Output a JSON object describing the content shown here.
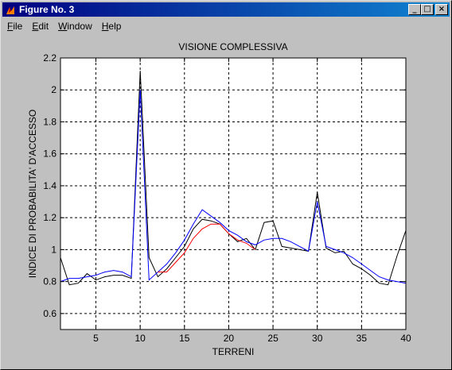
{
  "window": {
    "title": "Figure No. 3",
    "controls": {
      "minimize": "_",
      "maximize": "□",
      "close": "×"
    }
  },
  "menu": {
    "items": [
      {
        "key": "F",
        "rest": "ile"
      },
      {
        "key": "E",
        "rest": "dit"
      },
      {
        "key": "W",
        "rest": "indow"
      },
      {
        "key": "H",
        "rest": "elp"
      }
    ]
  },
  "chart_data": {
    "type": "line",
    "title": "VISIONE COMPLESSIVA",
    "xlabel": "TERRENI",
    "ylabel": "INDICE DI PROBABILITA' D'ACCESSO",
    "xlim": [
      1,
      40
    ],
    "ylim": [
      0.5,
      2.2
    ],
    "xticks": [
      5,
      10,
      15,
      20,
      25,
      30,
      35,
      40
    ],
    "yticks": [
      0.6,
      0.8,
      1,
      1.2,
      1.4,
      1.6,
      1.8,
      2,
      2.2
    ],
    "grid": true,
    "colors": {
      "black": "#000000",
      "blue": "#0000ff",
      "red": "#ff0000",
      "axes_bg": "#ffffff",
      "figure_bg": "#c0c0c0"
    },
    "series": [
      {
        "color": "#000000",
        "x": [
          1,
          2,
          3,
          4,
          5,
          6,
          7,
          8,
          9,
          10,
          11,
          12,
          13,
          14,
          15,
          16,
          17,
          18,
          19,
          20,
          21,
          22,
          23,
          24,
          25,
          26,
          27,
          28,
          29,
          30,
          31,
          32,
          33,
          34,
          35,
          36,
          37,
          38,
          39,
          40
        ],
        "y": [
          0.95,
          0.78,
          0.79,
          0.85,
          0.81,
          0.83,
          0.84,
          0.84,
          0.82,
          2.12,
          0.95,
          0.83,
          0.88,
          0.95,
          1.02,
          1.13,
          1.19,
          1.18,
          1.16,
          1.1,
          1.05,
          1.07,
          1.0,
          1.17,
          1.18,
          1.02,
          1.01,
          1.0,
          0.99,
          1.36,
          1.01,
          0.98,
          0.99,
          0.91,
          0.88,
          0.84,
          0.79,
          0.78,
          0.96,
          1.12
        ]
      },
      {
        "color": "#0000ff",
        "x": [
          1,
          2,
          3,
          4,
          5,
          6,
          7,
          8,
          9,
          10,
          11,
          12,
          13,
          14,
          15,
          16,
          17,
          18,
          19,
          20,
          21,
          22,
          23,
          24,
          25,
          26,
          27,
          28,
          29,
          30,
          31,
          32,
          33,
          34,
          35,
          36,
          37,
          38,
          39,
          40
        ],
        "y": [
          0.8,
          0.82,
          0.82,
          0.83,
          0.84,
          0.86,
          0.87,
          0.86,
          0.83,
          2.0,
          0.81,
          0.86,
          0.91,
          0.98,
          1.06,
          1.16,
          1.25,
          1.21,
          1.17,
          1.12,
          1.09,
          1.05,
          1.03,
          1.06,
          1.07,
          1.07,
          1.05,
          1.02,
          0.99,
          1.3,
          1.02,
          1.0,
          0.98,
          0.95,
          0.91,
          0.87,
          0.83,
          0.81,
          0.8,
          0.79
        ]
      },
      {
        "color": "#ff0000",
        "x": [
          12,
          13,
          14,
          15,
          16,
          17,
          18,
          19,
          20,
          21,
          22,
          23
        ],
        "y": [
          0.86,
          0.86,
          0.92,
          0.98,
          1.07,
          1.13,
          1.16,
          1.16,
          1.1,
          1.06,
          1.04,
          1.0
        ]
      }
    ]
  }
}
